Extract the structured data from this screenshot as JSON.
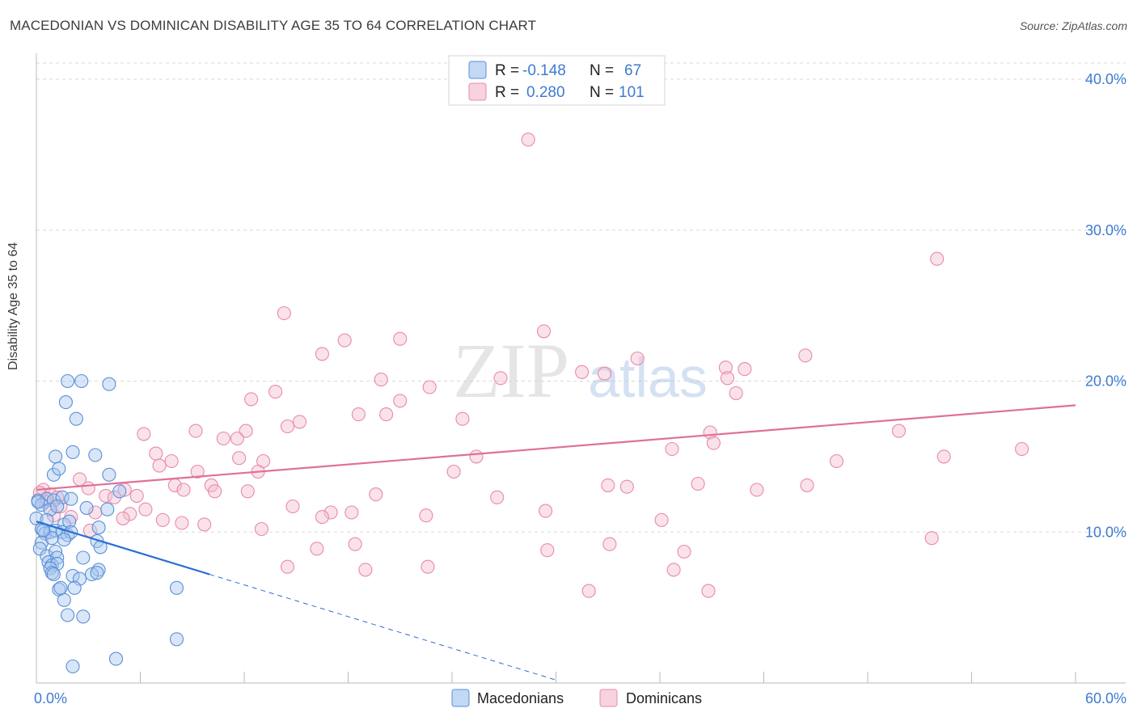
{
  "title": "MACEDONIAN VS DOMINICAN DISABILITY AGE 35 TO 64 CORRELATION CHART",
  "source": "Source: ZipAtlas.com",
  "watermark": {
    "zip": "ZIP",
    "atlas": "atlas"
  },
  "colors": {
    "blue_fill": "#a8c8f0",
    "blue_stroke": "#5b8fd6",
    "blue_line": "#2b6fd3",
    "pink_fill": "#f5bfd0",
    "pink_stroke": "#e88aa8",
    "pink_line": "#e07097",
    "tick_text": "#3d7bd1",
    "grid": "#d8d8d8"
  },
  "legend": {
    "r_label": "R =",
    "n_label": "N =",
    "rows": [
      {
        "series": "Macedonians",
        "r": "-0.148",
        "n": "67"
      },
      {
        "series": "Dominicans",
        "r": "0.280",
        "n": "101"
      }
    ]
  },
  "chart_data": {
    "type": "scatter",
    "title": "MACEDONIAN VS DOMINICAN DISABILITY AGE 35 TO 64 CORRELATION CHART",
    "xlabel": "",
    "ylabel": "Disability Age 35 to 64",
    "xlim": [
      0,
      60
    ],
    "ylim": [
      0,
      40
    ],
    "x_tick_labels": [
      {
        "value": 0,
        "label": "0.0%"
      },
      {
        "value": 60,
        "label": "60.0%"
      }
    ],
    "y_tick_labels": [
      {
        "value": 10,
        "label": "10.0%"
      },
      {
        "value": 20,
        "label": "20.0%"
      },
      {
        "value": 30,
        "label": "30.0%"
      },
      {
        "value": 40,
        "label": "40.0%"
      }
    ],
    "series": [
      {
        "name": "Macedonians",
        "color": "blue",
        "trend": {
          "x0": 0,
          "y0": 10.7,
          "x1": 10,
          "y1": 7.2,
          "dash_to_x": 30,
          "dash_to_y": 0.2
        },
        "points": [
          [
            1.8,
            20.0
          ],
          [
            2.6,
            20.0
          ],
          [
            4.2,
            19.8
          ],
          [
            1.7,
            18.6
          ],
          [
            2.3,
            17.5
          ],
          [
            1.1,
            15.0
          ],
          [
            2.1,
            15.3
          ],
          [
            3.4,
            15.1
          ],
          [
            1.0,
            13.8
          ],
          [
            1.3,
            14.2
          ],
          [
            4.2,
            13.8
          ],
          [
            0.1,
            12.1
          ],
          [
            0.6,
            12.2
          ],
          [
            1.0,
            12.1
          ],
          [
            1.5,
            12.3
          ],
          [
            2.0,
            12.2
          ],
          [
            4.8,
            12.7
          ],
          [
            0.3,
            11.8
          ],
          [
            0.8,
            11.5
          ],
          [
            1.2,
            11.7
          ],
          [
            4.1,
            11.5
          ],
          [
            0.0,
            10.9
          ],
          [
            0.6,
            10.8
          ],
          [
            1.6,
            10.5
          ],
          [
            1.9,
            10.7
          ],
          [
            3.6,
            10.3
          ],
          [
            0.3,
            10.2
          ],
          [
            0.5,
            9.9
          ],
          [
            0.8,
            10.0
          ],
          [
            1.1,
            10.1
          ],
          [
            1.5,
            10.0
          ],
          [
            1.8,
            9.8
          ],
          [
            2.0,
            10.0
          ],
          [
            0.3,
            9.3
          ],
          [
            0.9,
            9.6
          ],
          [
            1.6,
            9.5
          ],
          [
            3.5,
            9.4
          ],
          [
            3.7,
            9.0
          ],
          [
            0.2,
            8.9
          ],
          [
            0.6,
            8.4
          ],
          [
            1.1,
            8.7
          ],
          [
            1.2,
            8.3
          ],
          [
            2.7,
            8.3
          ],
          [
            0.7,
            8.0
          ],
          [
            0.9,
            7.8
          ],
          [
            1.2,
            7.9
          ],
          [
            0.8,
            7.6
          ],
          [
            3.6,
            7.5
          ],
          [
            0.9,
            7.3
          ],
          [
            1.0,
            7.2
          ],
          [
            2.1,
            7.1
          ],
          [
            3.2,
            7.2
          ],
          [
            3.5,
            7.3
          ],
          [
            2.5,
            6.9
          ],
          [
            1.3,
            6.2
          ],
          [
            1.4,
            6.3
          ],
          [
            2.2,
            6.3
          ],
          [
            8.1,
            6.3
          ],
          [
            1.6,
            5.5
          ],
          [
            1.8,
            4.5
          ],
          [
            2.7,
            4.4
          ],
          [
            8.1,
            2.9
          ],
          [
            2.1,
            1.1
          ],
          [
            4.6,
            1.6
          ],
          [
            0.1,
            12.0
          ],
          [
            0.4,
            10.1
          ],
          [
            2.9,
            11.6
          ]
        ]
      },
      {
        "name": "Dominicans",
        "color": "pink",
        "trend": {
          "x0": 0,
          "y0": 12.8,
          "x1": 60,
          "y1": 18.4
        },
        "points": [
          [
            28.4,
            36.0
          ],
          [
            52.0,
            28.1
          ],
          [
            14.3,
            24.5
          ],
          [
            21.0,
            22.8
          ],
          [
            17.8,
            22.7
          ],
          [
            16.5,
            21.8
          ],
          [
            34.7,
            21.5
          ],
          [
            44.4,
            21.7
          ],
          [
            39.8,
            20.9
          ],
          [
            40.9,
            20.8
          ],
          [
            29.3,
            23.3
          ],
          [
            31.5,
            20.6
          ],
          [
            32.8,
            20.5
          ],
          [
            26.8,
            20.2
          ],
          [
            39.9,
            20.2
          ],
          [
            19.9,
            20.1
          ],
          [
            22.7,
            19.6
          ],
          [
            13.8,
            19.3
          ],
          [
            40.4,
            19.2
          ],
          [
            12.4,
            18.8
          ],
          [
            21.0,
            18.7
          ],
          [
            18.6,
            17.8
          ],
          [
            20.2,
            17.8
          ],
          [
            15.2,
            17.3
          ],
          [
            14.5,
            17.0
          ],
          [
            24.6,
            17.5
          ],
          [
            9.2,
            16.7
          ],
          [
            12.1,
            16.7
          ],
          [
            6.2,
            16.5
          ],
          [
            38.9,
            16.6
          ],
          [
            49.8,
            16.7
          ],
          [
            10.8,
            16.2
          ],
          [
            11.6,
            16.2
          ],
          [
            36.7,
            15.5
          ],
          [
            39.1,
            15.9
          ],
          [
            6.9,
            15.2
          ],
          [
            56.9,
            15.5
          ],
          [
            13.1,
            14.7
          ],
          [
            11.7,
            14.9
          ],
          [
            25.4,
            15.0
          ],
          [
            46.2,
            14.7
          ],
          [
            52.4,
            15.0
          ],
          [
            7.8,
            14.7
          ],
          [
            7.1,
            14.4
          ],
          [
            9.3,
            14.0
          ],
          [
            12.8,
            14.0
          ],
          [
            24.1,
            14.0
          ],
          [
            2.5,
            13.5
          ],
          [
            10.1,
            13.1
          ],
          [
            33.0,
            13.1
          ],
          [
            38.2,
            13.2
          ],
          [
            34.1,
            13.0
          ],
          [
            8.0,
            13.1
          ],
          [
            10.3,
            12.7
          ],
          [
            12.2,
            12.7
          ],
          [
            5.1,
            12.8
          ],
          [
            4.0,
            12.4
          ],
          [
            5.8,
            12.4
          ],
          [
            4.5,
            12.3
          ],
          [
            19.6,
            12.5
          ],
          [
            26.6,
            12.3
          ],
          [
            41.6,
            12.8
          ],
          [
            0.4,
            12.8
          ],
          [
            0.8,
            12.5
          ],
          [
            0.5,
            12.0
          ],
          [
            1.2,
            12.3
          ],
          [
            6.3,
            11.5
          ],
          [
            14.8,
            11.7
          ],
          [
            3.4,
            11.3
          ],
          [
            5.4,
            11.2
          ],
          [
            17.0,
            11.3
          ],
          [
            18.2,
            11.3
          ],
          [
            1.0,
            11.1
          ],
          [
            2.0,
            11.0
          ],
          [
            5.0,
            10.9
          ],
          [
            16.5,
            11.0
          ],
          [
            22.5,
            11.1
          ],
          [
            29.4,
            11.4
          ],
          [
            7.3,
            10.8
          ],
          [
            8.4,
            10.6
          ],
          [
            9.7,
            10.5
          ],
          [
            13.0,
            10.2
          ],
          [
            3.1,
            10.1
          ],
          [
            36.1,
            10.8
          ],
          [
            51.7,
            9.6
          ],
          [
            16.2,
            8.9
          ],
          [
            18.4,
            9.2
          ],
          [
            33.1,
            9.2
          ],
          [
            29.5,
            8.8
          ],
          [
            37.4,
            8.7
          ],
          [
            14.5,
            7.7
          ],
          [
            19.0,
            7.5
          ],
          [
            22.6,
            7.7
          ],
          [
            36.8,
            7.5
          ],
          [
            31.9,
            6.1
          ],
          [
            38.8,
            6.1
          ],
          [
            0.2,
            12.6
          ],
          [
            1.4,
            11.7
          ],
          [
            3.0,
            12.9
          ],
          [
            8.5,
            12.8
          ],
          [
            44.5,
            13.1
          ]
        ]
      }
    ]
  }
}
